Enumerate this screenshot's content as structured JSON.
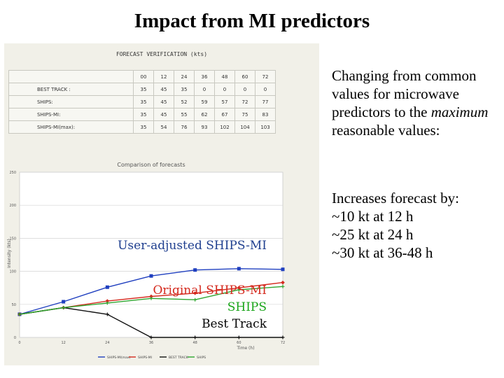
{
  "slide": {
    "title": "Impact from MI predictors"
  },
  "table": {
    "title": "FORECAST VERIFICATION (kts)",
    "columns": [
      "00",
      "12",
      "24",
      "36",
      "48",
      "60",
      "72"
    ],
    "rows": [
      {
        "label": "BEST TRACK :",
        "values": [
          "35",
          "45",
          "35",
          "0",
          "0",
          "0",
          "0"
        ]
      },
      {
        "label": "SHIPS:",
        "values": [
          "35",
          "45",
          "52",
          "59",
          "57",
          "72",
          "77"
        ]
      },
      {
        "label": "SHIPS-MI:",
        "values": [
          "35",
          "45",
          "55",
          "62",
          "67",
          "75",
          "83"
        ]
      },
      {
        "label": "SHIPS-MI(max):",
        "values": [
          "35",
          "54",
          "76",
          "93",
          "102",
          "104",
          "103"
        ]
      }
    ]
  },
  "chart_data": {
    "type": "line",
    "title": "Comparison of forecasts",
    "xlabel": "Time (h)",
    "ylabel": "Intensity (kts)",
    "x": [
      0,
      12,
      24,
      36,
      48,
      60,
      72
    ],
    "ylim": [
      0,
      250
    ],
    "yticks": [
      0,
      50,
      100,
      150,
      200,
      250
    ],
    "grid": true,
    "series": [
      {
        "name": "SHIPS-MI(max)",
        "color": "#1f3fbf",
        "marker": "square",
        "values": [
          35,
          54,
          76,
          93,
          102,
          104,
          103
        ]
      },
      {
        "name": "SHIPS-MI",
        "color": "#d42a1e",
        "marker": "diamond",
        "values": [
          35,
          45,
          55,
          62,
          67,
          75,
          83
        ]
      },
      {
        "name": "BEST TRACK",
        "color": "#111111",
        "marker": "plus",
        "values": [
          35,
          45,
          35,
          0,
          0,
          0,
          0
        ]
      },
      {
        "name": "SHIPS",
        "color": "#2fa52f",
        "marker": "plus",
        "values": [
          35,
          45,
          52,
          59,
          57,
          72,
          77
        ]
      }
    ],
    "annotations": [
      {
        "text": "User-adjusted SHIPS-MI",
        "color": "#1f3f8f"
      },
      {
        "text": "Original SHIPS-MI",
        "color": "#d42a1e"
      },
      {
        "text": "SHIPS",
        "color": "#1aa51a"
      },
      {
        "text": "Best Track",
        "color": "#000000"
      }
    ]
  },
  "side": {
    "para1_pre": "Changing from common values for microwave predictors to the",
    "para1_em": "maximum",
    "para1_post": "reasonable values:",
    "para2_lines": [
      "Increases forecast by:",
      "~10 kt at 12 h",
      "~25 kt at 24 h",
      "~30 kt at 36-48 h"
    ]
  }
}
